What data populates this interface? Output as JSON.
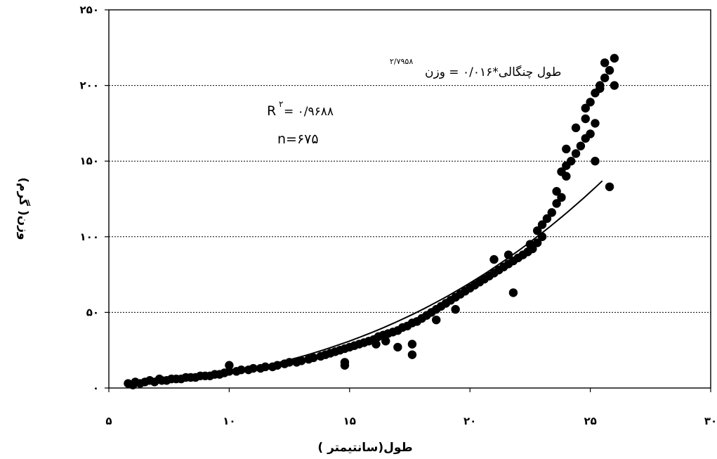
{
  "chart_data": {
    "type": "scatter",
    "title": "",
    "xlabel": "طول(سانتیمتر )",
    "ylabel": "وزن( گرم)",
    "xlim": [
      5,
      30
    ],
    "ylim": [
      0,
      250
    ],
    "x_ticks": [
      5,
      10,
      15,
      20,
      25,
      30
    ],
    "y_ticks": [
      0,
      50,
      100,
      150,
      200,
      250
    ],
    "x_tick_labels": [
      "۵",
      "۱۰",
      "۱۵",
      "۲۰",
      "۲۵",
      "۳۰"
    ],
    "y_tick_labels": [
      "۰",
      "۵۰",
      "۱۰۰",
      "۱۵۰",
      "۲۰۰",
      "۲۵۰"
    ],
    "grid": "horizontal dotted",
    "legend": "none",
    "equation": {
      "main": "طول چنگالی*۰/۰۱۶ = وزن",
      "exponent": "۲/۷۹۵۸"
    },
    "r_squared": {
      "label": "R",
      "label_sup": "۲",
      "value": " = ۰/۹۶۸۸"
    },
    "n_label": "n=۶۷۵",
    "fit": {
      "type": "power",
      "a": 0.016,
      "b": 2.7958,
      "x_range": [
        5.8,
        25.5
      ]
    },
    "series": [
      {
        "points": [
          [
            5.8,
            3
          ],
          [
            6.0,
            2
          ],
          [
            6.1,
            4
          ],
          [
            6.3,
            3
          ],
          [
            6.5,
            4
          ],
          [
            6.7,
            5
          ],
          [
            6.9,
            4
          ],
          [
            7.1,
            6
          ],
          [
            7.2,
            5
          ],
          [
            7.4,
            5
          ],
          [
            7.6,
            6
          ],
          [
            7.8,
            6
          ],
          [
            8.0,
            6
          ],
          [
            8.2,
            7
          ],
          [
            8.4,
            7
          ],
          [
            8.6,
            7
          ],
          [
            8.8,
            8
          ],
          [
            9.0,
            8
          ],
          [
            9.2,
            8
          ],
          [
            9.4,
            9
          ],
          [
            9.6,
            9
          ],
          [
            9.8,
            10
          ],
          [
            10.0,
            11
          ],
          [
            10.0,
            15
          ],
          [
            10.3,
            11
          ],
          [
            10.5,
            12
          ],
          [
            10.8,
            12
          ],
          [
            11.0,
            13
          ],
          [
            11.3,
            13
          ],
          [
            11.5,
            14
          ],
          [
            11.8,
            14
          ],
          [
            12.0,
            15
          ],
          [
            12.3,
            16
          ],
          [
            12.5,
            17
          ],
          [
            12.8,
            17
          ],
          [
            13.0,
            18
          ],
          [
            13.3,
            19
          ],
          [
            13.5,
            20
          ],
          [
            13.8,
            21
          ],
          [
            14.0,
            22
          ],
          [
            14.2,
            23
          ],
          [
            14.4,
            24
          ],
          [
            14.6,
            25
          ],
          [
            14.8,
            26
          ],
          [
            14.8,
            15
          ],
          [
            14.8,
            17
          ],
          [
            15.0,
            27
          ],
          [
            15.2,
            28
          ],
          [
            15.4,
            29
          ],
          [
            15.6,
            30
          ],
          [
            15.8,
            31
          ],
          [
            16.0,
            32
          ],
          [
            16.1,
            29
          ],
          [
            16.2,
            34
          ],
          [
            16.4,
            35
          ],
          [
            16.5,
            31
          ],
          [
            16.6,
            36
          ],
          [
            16.8,
            37
          ],
          [
            17.0,
            38
          ],
          [
            17.0,
            27
          ],
          [
            17.2,
            40
          ],
          [
            17.4,
            41
          ],
          [
            17.6,
            43
          ],
          [
            17.6,
            29
          ],
          [
            17.6,
            22
          ],
          [
            17.8,
            44
          ],
          [
            18.0,
            46
          ],
          [
            18.2,
            48
          ],
          [
            18.4,
            50
          ],
          [
            18.6,
            52
          ],
          [
            18.6,
            45
          ],
          [
            18.8,
            54
          ],
          [
            19.0,
            56
          ],
          [
            19.2,
            58
          ],
          [
            19.4,
            60
          ],
          [
            19.4,
            52
          ],
          [
            19.6,
            62
          ],
          [
            19.8,
            64
          ],
          [
            20.0,
            66
          ],
          [
            20.2,
            68
          ],
          [
            20.4,
            70
          ],
          [
            20.6,
            72
          ],
          [
            20.8,
            74
          ],
          [
            21.0,
            76
          ],
          [
            21.0,
            85
          ],
          [
            21.2,
            78
          ],
          [
            21.4,
            80
          ],
          [
            21.6,
            82
          ],
          [
            21.6,
            88
          ],
          [
            21.8,
            84
          ],
          [
            21.8,
            63
          ],
          [
            22.0,
            86
          ],
          [
            22.2,
            88
          ],
          [
            22.4,
            90
          ],
          [
            22.5,
            95
          ],
          [
            22.6,
            92
          ],
          [
            22.8,
            96
          ],
          [
            22.8,
            104
          ],
          [
            23.0,
            100
          ],
          [
            23.0,
            108
          ],
          [
            23.2,
            112
          ],
          [
            23.4,
            116
          ],
          [
            23.6,
            122
          ],
          [
            23.6,
            130
          ],
          [
            23.8,
            126
          ],
          [
            23.8,
            143
          ],
          [
            24.0,
            140
          ],
          [
            24.0,
            158
          ],
          [
            24.0,
            147
          ],
          [
            24.2,
            150
          ],
          [
            24.4,
            155
          ],
          [
            24.4,
            172
          ],
          [
            24.6,
            160
          ],
          [
            24.8,
            165
          ],
          [
            24.8,
            185
          ],
          [
            24.8,
            178
          ],
          [
            25.0,
            168
          ],
          [
            25.0,
            189
          ],
          [
            25.2,
            175
          ],
          [
            25.2,
            150
          ],
          [
            25.2,
            195
          ],
          [
            25.4,
            200
          ],
          [
            25.4,
            198
          ],
          [
            25.6,
            205
          ],
          [
            25.6,
            215
          ],
          [
            25.8,
            210
          ],
          [
            25.8,
            133
          ],
          [
            26.0,
            218
          ],
          [
            26.0,
            200
          ]
        ]
      }
    ]
  }
}
